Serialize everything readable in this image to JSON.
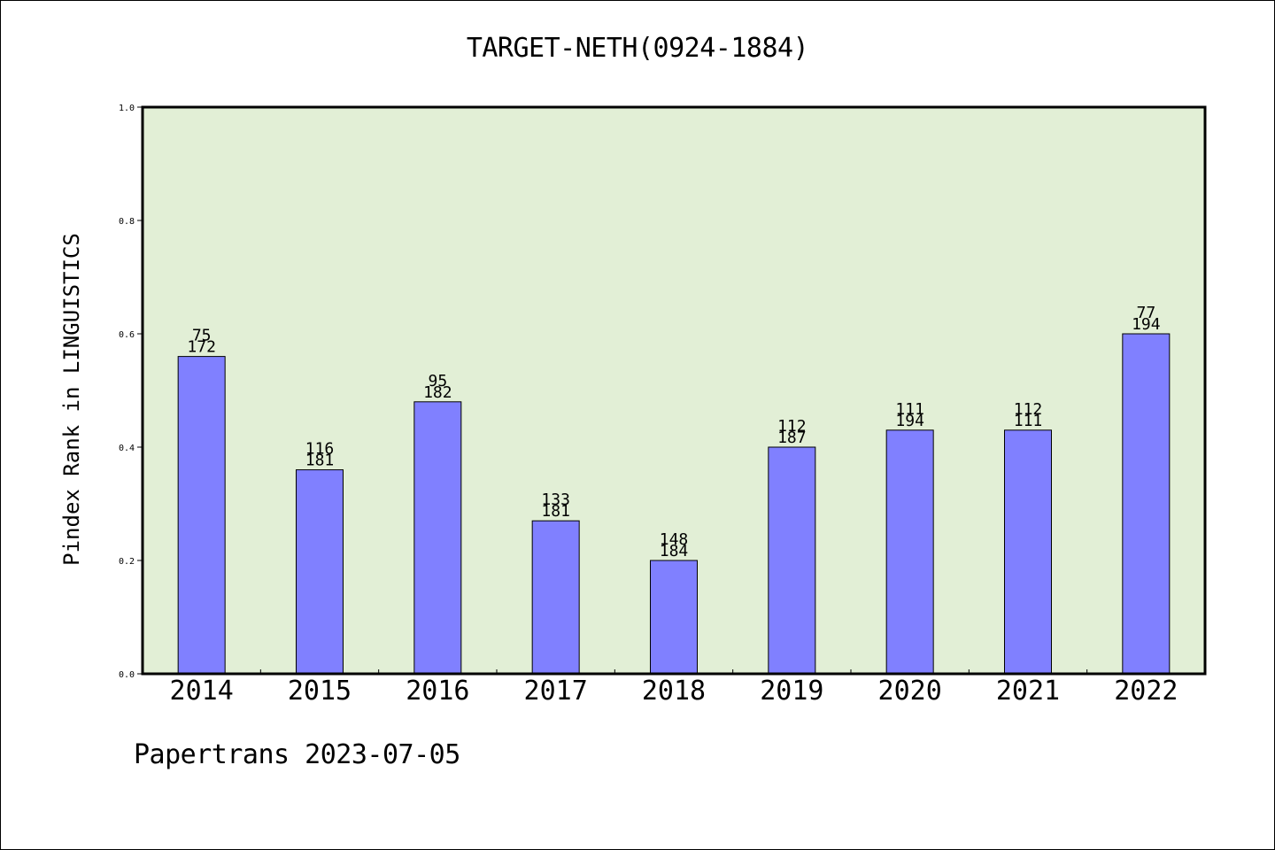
{
  "chart_data": {
    "type": "bar",
    "title": "TARGET-NETH(0924-1884)",
    "ylabel": "Pindex Rank in LINGUISTICS",
    "xlabel": "",
    "categories": [
      "2014",
      "2015",
      "2016",
      "2017",
      "2018",
      "2019",
      "2020",
      "2021",
      "2022"
    ],
    "values": [
      0.56,
      0.36,
      0.48,
      0.27,
      0.2,
      0.4,
      0.43,
      0.43,
      0.6
    ],
    "annotations_top": [
      "75",
      "116",
      "95",
      "133",
      "148",
      "112",
      "111",
      "112",
      "77"
    ],
    "annotations_bottom": [
      "172",
      "181",
      "182",
      "181",
      "184",
      "187",
      "194",
      "111",
      "194"
    ],
    "ylim": [
      0,
      1.0
    ],
    "yticks": [
      "0.0",
      "0.2",
      "0.4",
      "0.6",
      "0.8",
      "1.0"
    ],
    "grid": false,
    "colors": {
      "plot_background": "#e2efd6",
      "bar_fill": "#8080ff",
      "bar_edge": "#000000"
    }
  },
  "footer": "Papertrans 2023-07-05"
}
